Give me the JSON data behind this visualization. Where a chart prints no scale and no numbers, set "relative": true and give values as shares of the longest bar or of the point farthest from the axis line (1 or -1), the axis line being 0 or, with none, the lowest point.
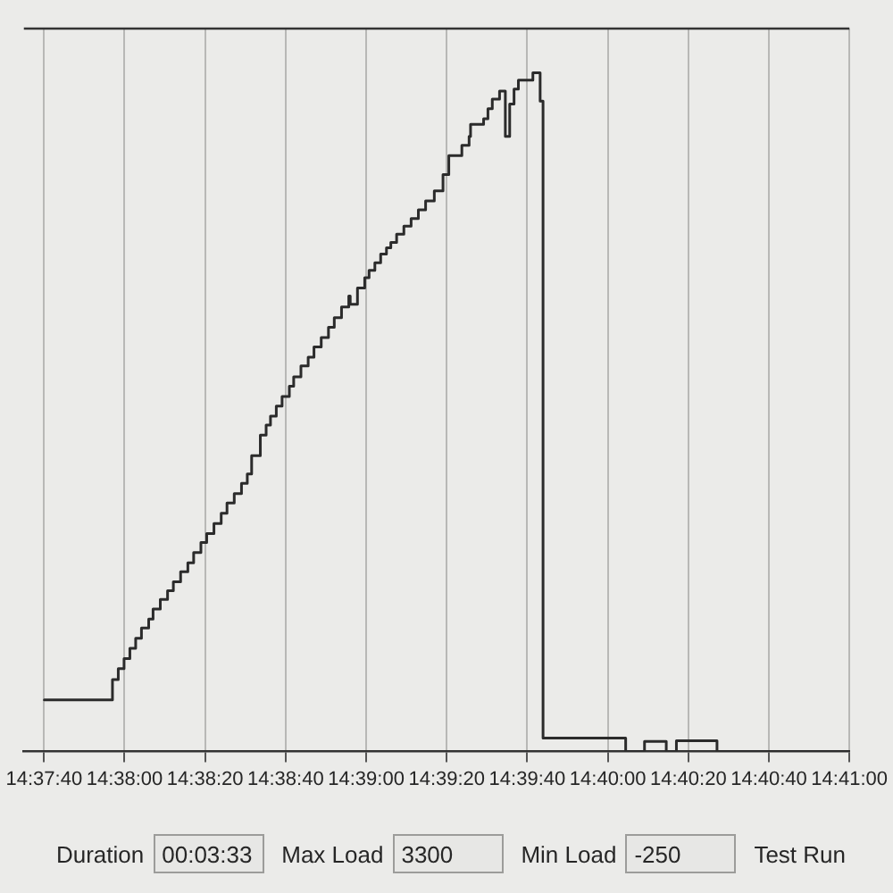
{
  "chart_data": {
    "type": "step",
    "relative": true,
    "grid": "x",
    "marker": "none",
    "line_style": "solid",
    "x": [
      14.6278,
      14.6325,
      14.6329,
      14.6333,
      14.6337,
      14.6341,
      14.6345,
      14.635,
      14.6353,
      14.6358,
      14.6363,
      14.6367,
      14.6372,
      14.6377,
      14.6381,
      14.6386,
      14.639,
      14.6395,
      14.64,
      14.6404,
      14.6409,
      14.6414,
      14.6418,
      14.6421,
      14.6427,
      14.6431,
      14.6434,
      14.6438,
      14.6442,
      14.6447,
      14.645,
      14.6455,
      14.646,
      14.6464,
      14.6469,
      14.6474,
      14.6478,
      14.6483,
      14.6488,
      14.6489,
      14.6494,
      14.6499,
      14.6502,
      14.6506,
      14.651,
      14.6514,
      14.6517,
      14.6521,
      14.6526,
      14.6531,
      14.6536,
      14.6541,
      14.6547,
      14.6553,
      14.6557,
      14.6566,
      14.6571,
      14.6572,
      14.6581,
      14.6584,
      14.6587,
      14.6592,
      14.6596,
      14.6599,
      14.6602,
      14.6605,
      14.6615,
      14.662,
      14.6622,
      14.6679,
      14.6692,
      14.6707,
      14.6714,
      14.6742,
      14.6833
    ],
    "series": [
      {
        "color": "#2b2b2b",
        "values": [
          0.076,
          0.106,
          0.122,
          0.137,
          0.152,
          0.167,
          0.182,
          0.195,
          0.21,
          0.224,
          0.237,
          0.25,
          0.265,
          0.278,
          0.293,
          0.308,
          0.321,
          0.336,
          0.351,
          0.366,
          0.38,
          0.395,
          0.409,
          0.436,
          0.466,
          0.481,
          0.494,
          0.509,
          0.523,
          0.538,
          0.552,
          0.568,
          0.581,
          0.596,
          0.61,
          0.625,
          0.639,
          0.655,
          0.671,
          0.659,
          0.683,
          0.698,
          0.709,
          0.72,
          0.733,
          0.742,
          0.75,
          0.762,
          0.774,
          0.785,
          0.798,
          0.811,
          0.826,
          0.85,
          0.878,
          0.893,
          0.906,
          0.924,
          0.932,
          0.947,
          0.961,
          0.973,
          0.906,
          0.954,
          0.976,
          0.989,
          1,
          0.958,
          0.02,
          0,
          0.015,
          0,
          0.016,
          0,
          0
        ]
      }
    ],
    "xlim": [
      14.626389,
      14.683333
    ],
    "xticks": [
      {
        "value": 14.627778,
        "label": "14:37:40"
      },
      {
        "value": 14.633333,
        "label": "14:38:00"
      },
      {
        "value": 14.638889,
        "label": "14:38:20"
      },
      {
        "value": 14.644444,
        "label": "14:38:40"
      },
      {
        "value": 14.65,
        "label": "14:39:00"
      },
      {
        "value": 14.655556,
        "label": "14:39:20"
      },
      {
        "value": 14.661111,
        "label": "14:39:40"
      },
      {
        "value": 14.666667,
        "label": "14:40:00"
      },
      {
        "value": 14.672222,
        "label": "14:40:20"
      },
      {
        "value": 14.677778,
        "label": "14:40:40"
      },
      {
        "value": 14.683333,
        "label": "14:41:00"
      }
    ],
    "annotations": [
      "Duration",
      "00:03:33",
      "Max Load",
      "3300",
      "Min Load",
      "-250",
      "Test Run"
    ]
  }
}
